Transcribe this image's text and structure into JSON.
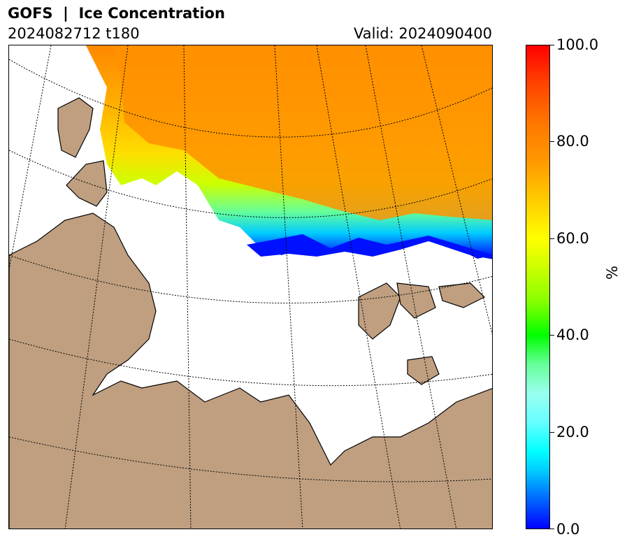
{
  "header": {
    "title": "GOFS  |  Ice Concentration",
    "run": "2024082712 t180",
    "valid": "Valid: 2024090400"
  },
  "colorbar": {
    "label": "%",
    "ticks": [
      "0.0",
      "20.0",
      "40.0",
      "60.0",
      "80.0",
      "100.0"
    ],
    "range": [
      0,
      100
    ]
  },
  "colors": {
    "land": "#bf9f80",
    "ocean": "#ffffff",
    "ice_low": "#0000ff",
    "ice_mid": "#ffff00",
    "ice_high": "#ff8800"
  }
}
